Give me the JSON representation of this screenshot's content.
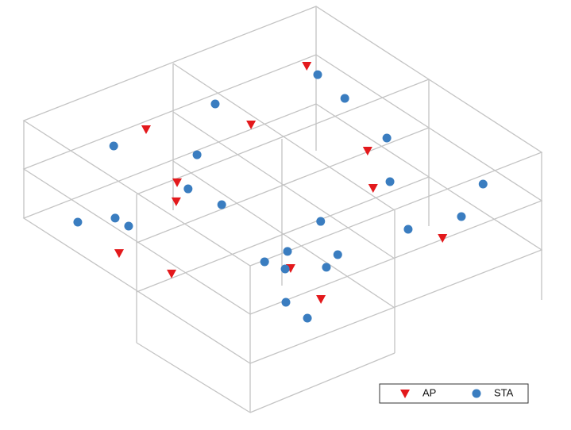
{
  "chart_data": {
    "type": "scatter",
    "series": [
      {
        "name": "AP",
        "color": "#e3191c",
        "marker": "triangle-down",
        "x": [
          2.39,
          2.42,
          3.97,
          7.04,
          8.73,
          5.21,
          6.01,
          7.27,
          9.02,
          10.78,
          12.61,
          12.03
        ],
        "y": [
          7.83,
          2.31,
          4.7,
          6.31,
          5.19,
          1.21,
          0.56,
          -2.37,
          -1.93,
          0.78,
          0.4,
          5.01
        ]
      },
      {
        "name": "STA",
        "color": "#3a7dc0",
        "marker": "circle",
        "x": [
          2.95,
          4.42,
          2.49,
          2.59,
          4.36,
          6.82,
          8.74,
          10.4,
          5.67,
          6.91,
          5.25,
          5.7,
          6.27,
          9.28,
          11.43,
          11.08,
          10.01,
          10.99,
          10.07,
          10.72,
          11.34,
          12.16,
          13.2
        ],
        "y": [
          7.77,
          7.56,
          4.62,
          1.07,
          2.55,
          7.14,
          5.76,
          7.66,
          1.23,
          1.42,
          -2.22,
          -1.29,
          -1.27,
          2.97,
          6.12,
          4.57,
          1.27,
          2.23,
          0.44,
          0.64,
          1.57,
          -0.45,
          -0.52
        ]
      }
    ],
    "legend": "lower right"
  }
}
